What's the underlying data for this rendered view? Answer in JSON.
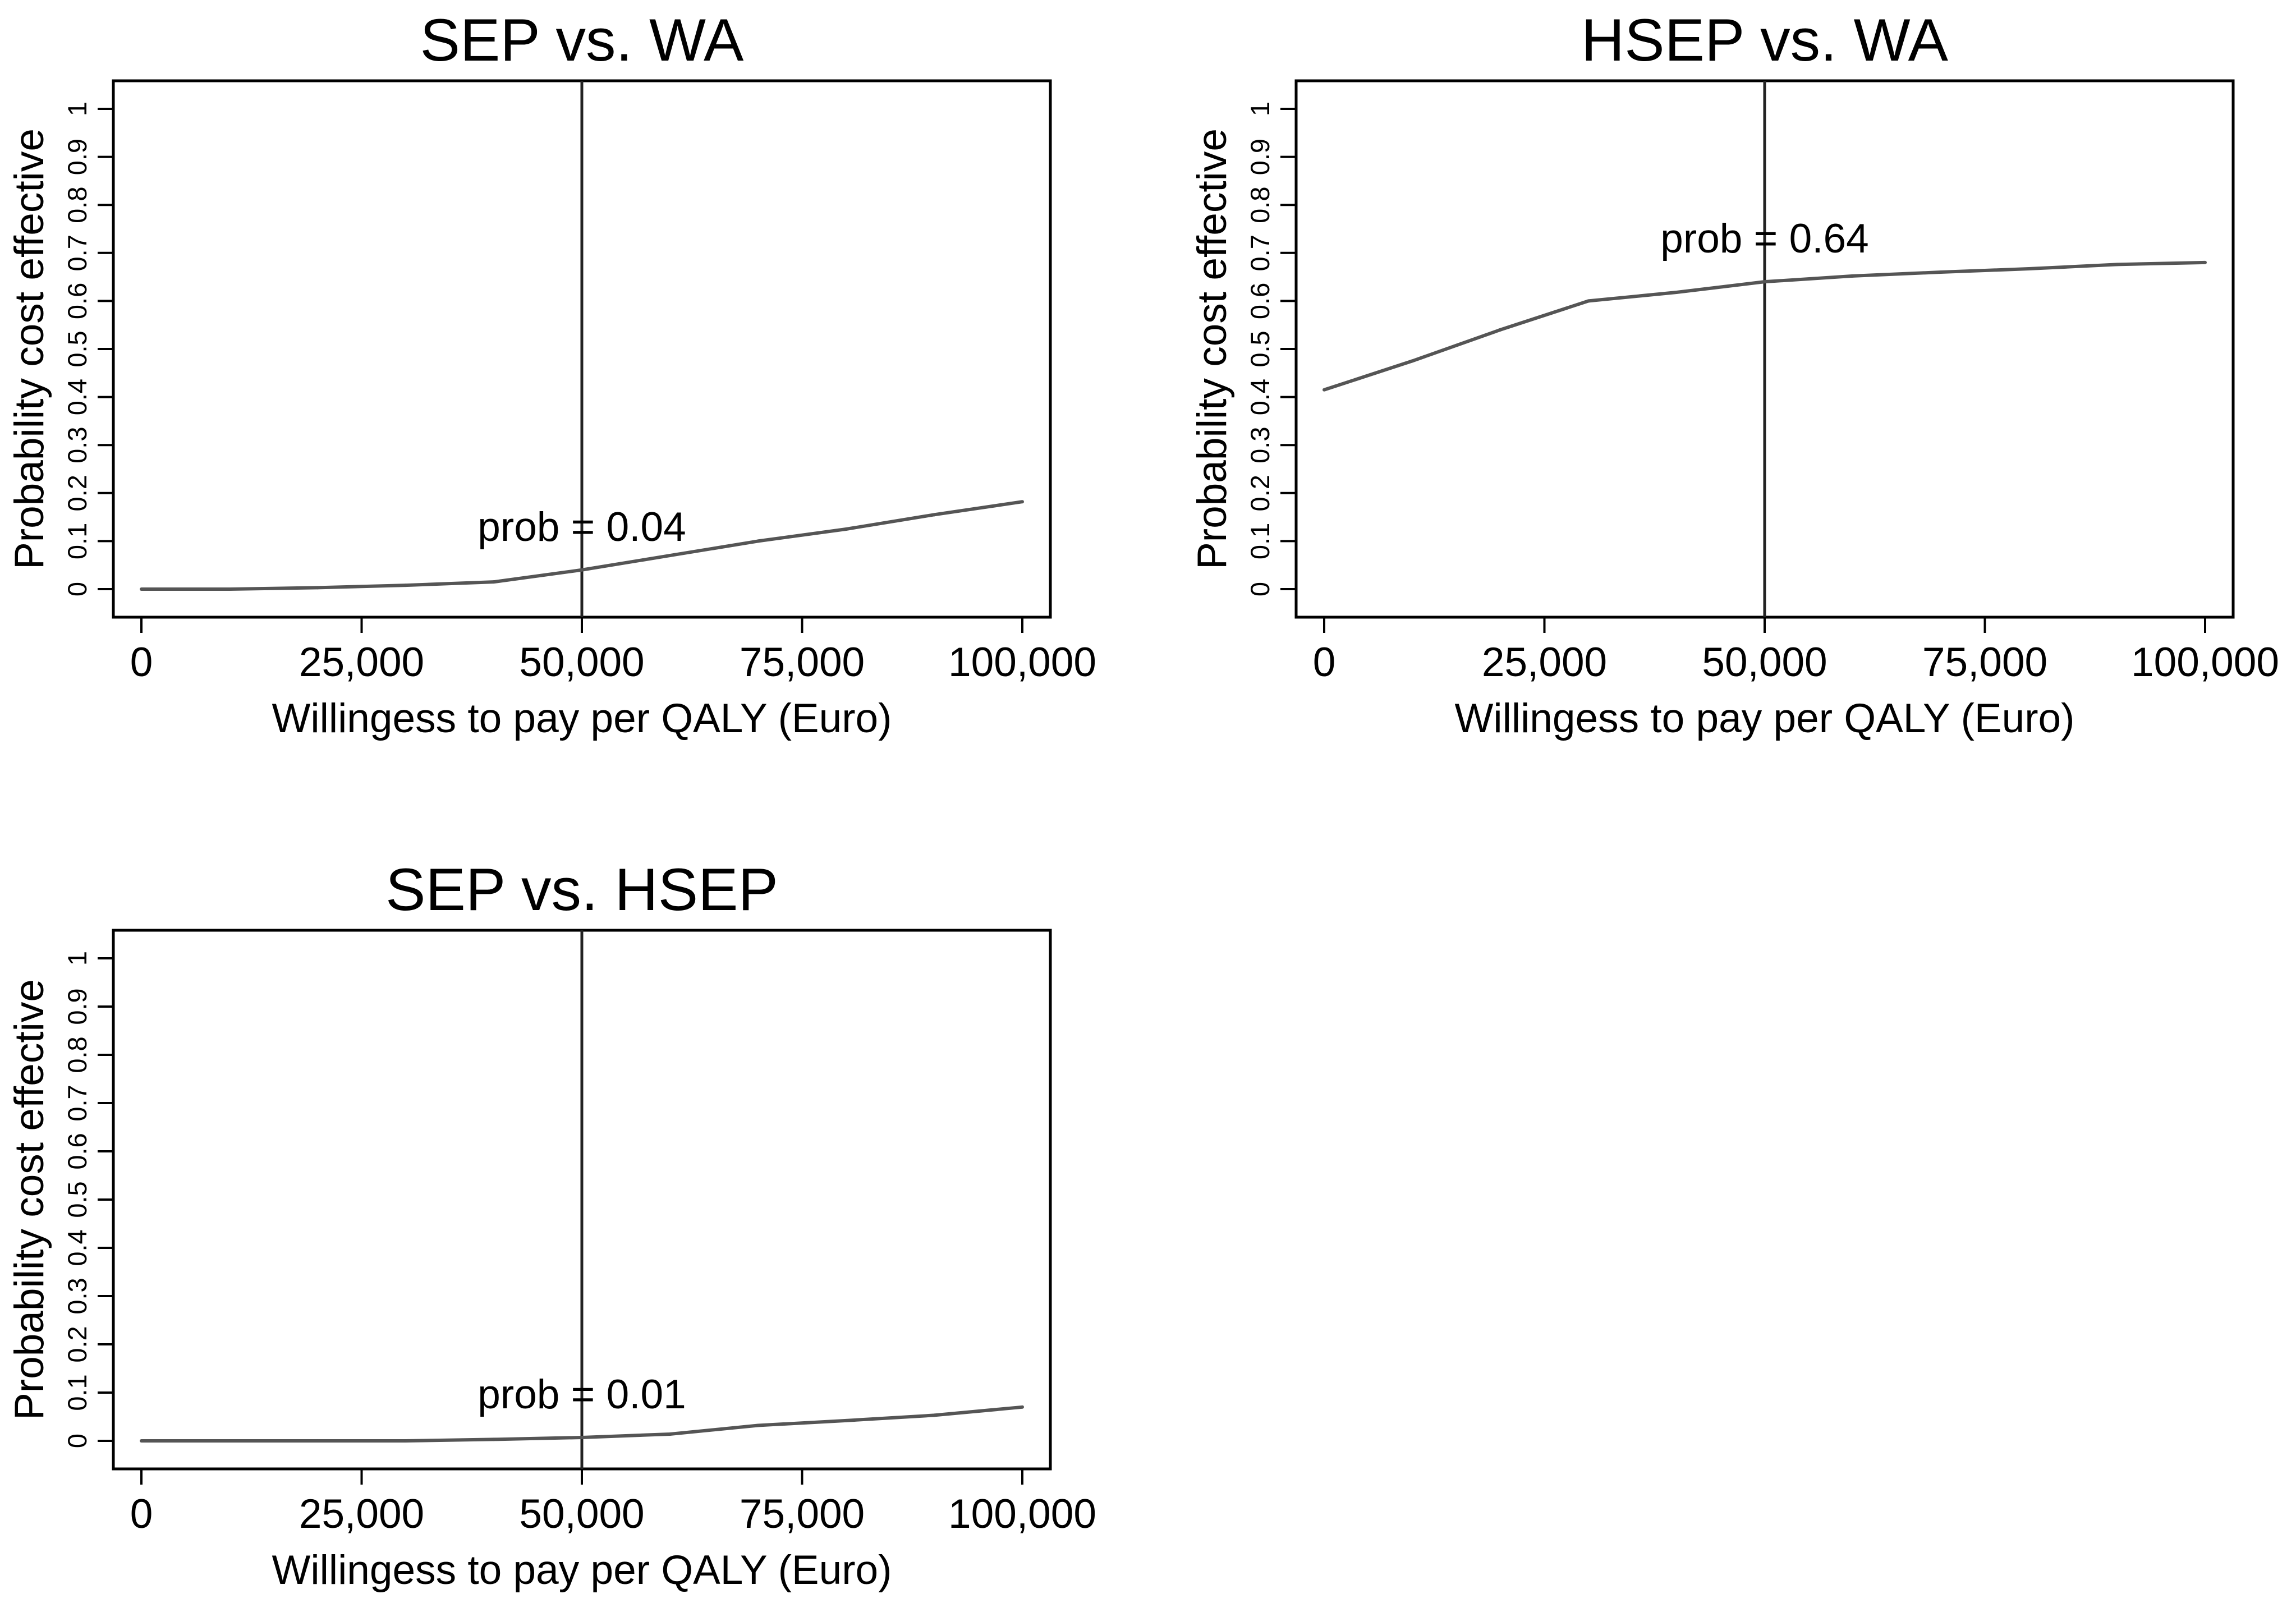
{
  "chart_data": [
    {
      "type": "line",
      "title": "SEP vs. WA",
      "xlabel": "Willingess to pay per QALY (Euro)",
      "ylabel": "Probability cost effective",
      "xlim": [
        0,
        100000
      ],
      "ylim": [
        0,
        1
      ],
      "x_ticks": [
        0,
        25000,
        50000,
        75000,
        100000
      ],
      "x_tick_labels": [
        "0",
        "25,000",
        "50,000",
        "75,000",
        "100,000"
      ],
      "y_ticks": [
        0,
        0.1,
        0.2,
        0.3,
        0.4,
        0.5,
        0.6,
        0.7,
        0.8,
        0.9,
        1
      ],
      "y_tick_labels": [
        "0",
        "0.1",
        "0.2",
        "0.3",
        "0.4",
        "0.5",
        "0.6",
        "0.7",
        "0.8",
        "0.9",
        "1"
      ],
      "threshold": 50000,
      "annotation": "prob = 0.04",
      "grid": false,
      "series": [
        {
          "x": [
            0,
            10000,
            20000,
            30000,
            40000,
            50000,
            60000,
            70000,
            80000,
            90000,
            100000
          ],
          "values": [
            0.0,
            0.0,
            0.003,
            0.008,
            0.015,
            0.04,
            0.07,
            0.1,
            0.125,
            0.155,
            0.182
          ]
        }
      ]
    },
    {
      "type": "line",
      "title": "HSEP vs. WA",
      "xlabel": "Willingess to pay per QALY (Euro)",
      "ylabel": "Probability cost effective",
      "xlim": [
        0,
        100000
      ],
      "ylim": [
        0,
        1
      ],
      "x_ticks": [
        0,
        25000,
        50000,
        75000,
        100000
      ],
      "x_tick_labels": [
        "0",
        "25,000",
        "50,000",
        "75,000",
        "100,000"
      ],
      "y_ticks": [
        0,
        0.1,
        0.2,
        0.3,
        0.4,
        0.5,
        0.6,
        0.7,
        0.8,
        0.9,
        1
      ],
      "y_tick_labels": [
        "0",
        "0.1",
        "0.2",
        "0.3",
        "0.4",
        "0.5",
        "0.6",
        "0.7",
        "0.8",
        "0.9",
        "1"
      ],
      "threshold": 50000,
      "annotation": "prob = 0.64",
      "grid": false,
      "series": [
        {
          "x": [
            0,
            10000,
            20000,
            30000,
            40000,
            50000,
            60000,
            70000,
            80000,
            90000,
            100000
          ],
          "values": [
            0.415,
            0.475,
            0.54,
            0.6,
            0.618,
            0.64,
            0.652,
            0.66,
            0.667,
            0.676,
            0.68
          ]
        }
      ]
    },
    {
      "type": "line",
      "title": "SEP vs. HSEP",
      "xlabel": "Willingess to pay per QALY (Euro)",
      "ylabel": "Probability cost effective",
      "xlim": [
        0,
        100000
      ],
      "ylim": [
        0,
        1
      ],
      "x_ticks": [
        0,
        25000,
        50000,
        75000,
        100000
      ],
      "x_tick_labels": [
        "0",
        "25,000",
        "50,000",
        "75,000",
        "100,000"
      ],
      "y_ticks": [
        0,
        0.1,
        0.2,
        0.3,
        0.4,
        0.5,
        0.6,
        0.7,
        0.8,
        0.9,
        1
      ],
      "y_tick_labels": [
        "0",
        "0.1",
        "0.2",
        "0.3",
        "0.4",
        "0.5",
        "0.6",
        "0.7",
        "0.8",
        "0.9",
        "1"
      ],
      "threshold": 50000,
      "annotation": "prob = 0.01",
      "grid": false,
      "series": [
        {
          "x": [
            0,
            10000,
            20000,
            30000,
            40000,
            50000,
            60000,
            70000,
            80000,
            90000,
            100000
          ],
          "values": [
            0.0,
            0.0,
            0.0,
            0.0,
            0.003,
            0.007,
            0.014,
            0.032,
            0.042,
            0.053,
            0.07
          ]
        }
      ]
    }
  ],
  "colors": {
    "line": "#555555",
    "axis": "#000000",
    "threshold": "#222222"
  }
}
